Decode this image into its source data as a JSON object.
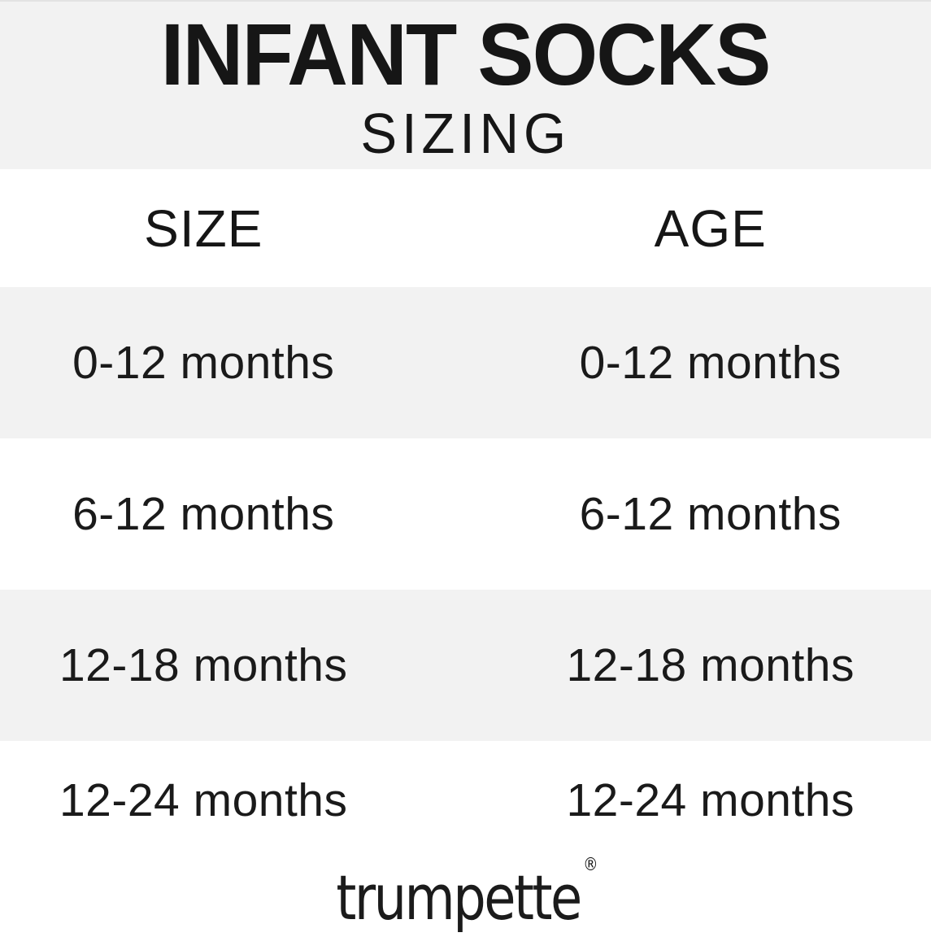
{
  "header": {
    "title": "INFANT SOCKS",
    "subtitle": "SIZING"
  },
  "table": {
    "columns": [
      "SIZE",
      "AGE"
    ],
    "rows": [
      {
        "size": "0-12 months",
        "age": "0-12 months"
      },
      {
        "size": "6-12 months",
        "age": "6-12 months"
      },
      {
        "size": "12-18 months",
        "age": "12-18 months"
      },
      {
        "size": "12-24 months",
        "age": "12-24 months"
      }
    ]
  },
  "footer": {
    "brand": "trumpette",
    "registered_mark": "®"
  },
  "colors": {
    "band": "#f2f2f2",
    "background": "#ffffff",
    "text": "#161616"
  }
}
